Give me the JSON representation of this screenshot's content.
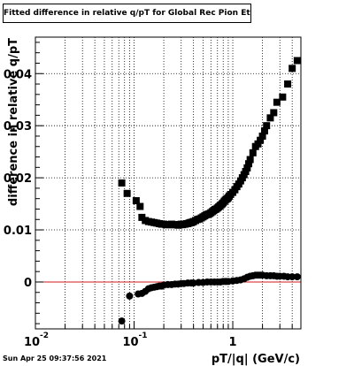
{
  "chart_data": {
    "type": "scatter",
    "title": "Fitted difference in relative q/pT  for Global Rec Pion EtapT",
    "xlabel": "pT/|q| (GeV/c)",
    "ylabel": "difference in relative q/pT",
    "x_scale": "log",
    "xlim": [
      0.01,
      4.9
    ],
    "ylim": [
      -0.009,
      0.047
    ],
    "x_ticks": [
      {
        "value": 0.01,
        "label": "10",
        "exp": "-2"
      },
      {
        "value": 0.1,
        "label": "10",
        "exp": "-1"
      },
      {
        "value": 1,
        "label": "1",
        "exp": ""
      }
    ],
    "y_ticks": [
      {
        "value": 0,
        "label": "0"
      },
      {
        "value": 0.01,
        "label": "0.01"
      },
      {
        "value": 0.02,
        "label": "0.02"
      },
      {
        "value": 0.03,
        "label": "0.03"
      },
      {
        "value": 0.04,
        "label": "0.04"
      }
    ],
    "grid": true,
    "reference_line": {
      "y": 0,
      "color": "#d11a1a"
    },
    "series": [
      {
        "marker": "square",
        "color": "#000000",
        "x": [
          0.075,
          0.085,
          0.105,
          0.115,
          0.12,
          0.13,
          0.14,
          0.15,
          0.16,
          0.17,
          0.18,
          0.19,
          0.2,
          0.21,
          0.22,
          0.23,
          0.24,
          0.25,
          0.26,
          0.27,
          0.28,
          0.29,
          0.3,
          0.31,
          0.32,
          0.33,
          0.34,
          0.35,
          0.36,
          0.37,
          0.38,
          0.39,
          0.4,
          0.42,
          0.44,
          0.46,
          0.48,
          0.5,
          0.52,
          0.54,
          0.56,
          0.58,
          0.6,
          0.62,
          0.64,
          0.66,
          0.68,
          0.7,
          0.72,
          0.74,
          0.76,
          0.78,
          0.8,
          0.82,
          0.84,
          0.86,
          0.88,
          0.9,
          0.92,
          0.95,
          1.0,
          1.05,
          1.1,
          1.15,
          1.2,
          1.25,
          1.3,
          1.35,
          1.4,
          1.45,
          1.5,
          1.6,
          1.7,
          1.8,
          1.9,
          2.0,
          2.1,
          2.2,
          2.4,
          2.6,
          2.8,
          3.2,
          3.6,
          4.0,
          4.5
        ],
        "y": [
          0.019,
          0.017,
          0.0156,
          0.0145,
          0.0124,
          0.0118,
          0.0116,
          0.0115,
          0.0114,
          0.0113,
          0.0112,
          0.0111,
          0.0111,
          0.011,
          0.011,
          0.011,
          0.0111,
          0.011,
          0.011,
          0.011,
          0.0109,
          0.011,
          0.0111,
          0.011,
          0.0111,
          0.0111,
          0.0112,
          0.0112,
          0.0113,
          0.0114,
          0.0114,
          0.0115,
          0.0116,
          0.0118,
          0.012,
          0.0121,
          0.0123,
          0.0125,
          0.0127,
          0.0129,
          0.013,
          0.0131,
          0.0133,
          0.0135,
          0.0137,
          0.0139,
          0.014,
          0.0142,
          0.0144,
          0.0146,
          0.0148,
          0.015,
          0.0152,
          0.0155,
          0.0157,
          0.0159,
          0.016,
          0.0162,
          0.0165,
          0.0168,
          0.0172,
          0.0177,
          0.0183,
          0.0188,
          0.0194,
          0.02,
          0.0206,
          0.0212,
          0.0219,
          0.0227,
          0.0235,
          0.0248,
          0.026,
          0.0265,
          0.0272,
          0.028,
          0.029,
          0.03,
          0.0315,
          0.0325,
          0.0345,
          0.0355,
          0.038,
          0.041,
          0.0425
        ]
      },
      {
        "marker": "circle",
        "color": "#000000",
        "x": [
          0.075,
          0.09,
          0.11,
          0.12,
          0.13,
          0.14,
          0.15,
          0.16,
          0.17,
          0.18,
          0.19,
          0.2,
          0.22,
          0.24,
          0.26,
          0.28,
          0.3,
          0.32,
          0.35,
          0.38,
          0.4,
          0.45,
          0.5,
          0.55,
          0.6,
          0.65,
          0.7,
          0.75,
          0.8,
          0.85,
          0.9,
          1.0,
          1.1,
          1.2,
          1.3,
          1.4,
          1.5,
          1.6,
          1.7,
          1.8,
          1.9,
          2.0,
          2.2,
          2.4,
          2.6,
          2.8,
          3.0,
          3.3,
          3.6,
          4.0,
          4.5
        ],
        "y": [
          -0.0075,
          -0.0027,
          -0.0023,
          -0.0022,
          -0.0018,
          -0.0013,
          -0.0011,
          -0.001,
          -0.0009,
          -0.0008,
          -0.0008,
          -0.0006,
          -0.0005,
          -0.0005,
          -0.0004,
          -0.0004,
          -0.0003,
          -0.0003,
          -0.0002,
          -0.0002,
          -0.0002,
          -0.0001,
          -0.0001,
          0.0,
          0.0,
          0.0,
          0.0,
          0.0,
          0.0001,
          0.0001,
          0.0001,
          0.0002,
          0.0003,
          0.0004,
          0.0006,
          0.0009,
          0.0011,
          0.0012,
          0.0013,
          0.0013,
          0.0013,
          0.0013,
          0.0012,
          0.0012,
          0.0012,
          0.0011,
          0.0011,
          0.0011,
          0.001,
          0.001,
          0.001
        ]
      }
    ]
  },
  "footer": {
    "timestamp": "Sun Apr 25 09:37:56 2021"
  }
}
